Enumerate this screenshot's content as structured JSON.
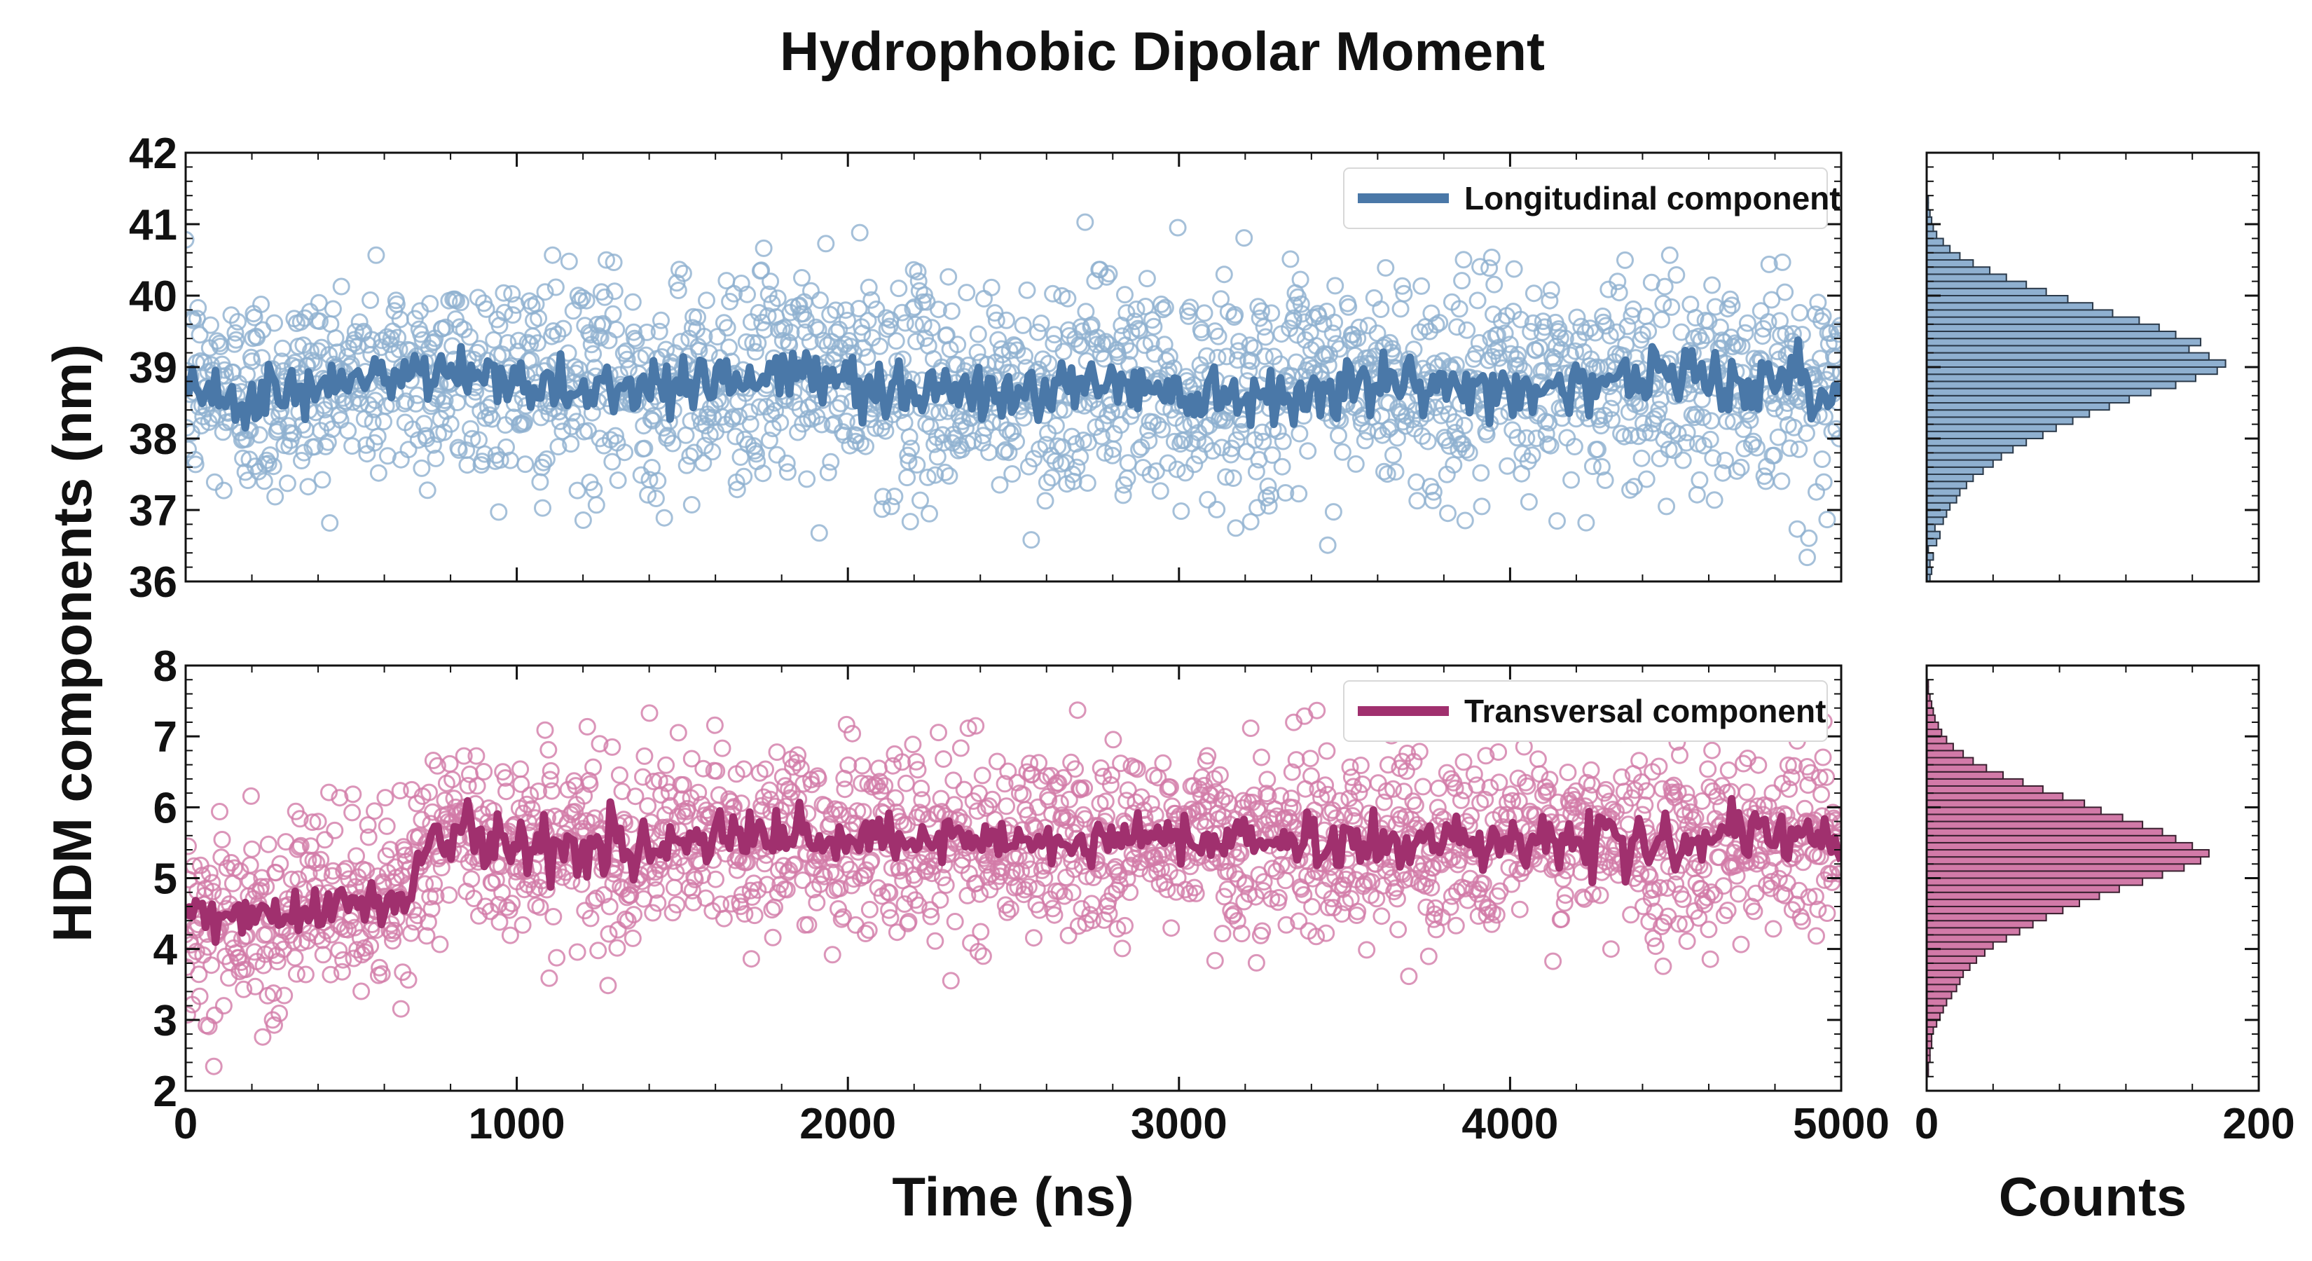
{
  "figure": {
    "title": "Hydrophobic Dipolar Moment",
    "shared_ylabel": "HDM components (nm)",
    "xlabel_time": "Time (ns)",
    "xlabel_counts": "Counts"
  },
  "chart_data": [
    {
      "id": "longitudinal",
      "type": "scatter",
      "title": "",
      "xlabel": "Time (ns)",
      "ylabel": "HDM components (nm)",
      "xlim": [
        0,
        5000
      ],
      "ylim": [
        36,
        42
      ],
      "xticks": [
        0,
        1000,
        2000,
        3000,
        4000,
        5000
      ],
      "yticks": [
        36,
        37,
        38,
        39,
        40,
        41,
        42
      ],
      "legend": "top-right",
      "grid": false,
      "series": [
        {
          "name": "Longitudinal component",
          "color": "#4a78a8",
          "marker_color": "#8fb0d0",
          "style": "line-over-scatter",
          "mean_x": [
            0,
            250,
            500,
            750,
            1000,
            1250,
            1500,
            1750,
            2000,
            2250,
            2500,
            2750,
            3000,
            3250,
            3500,
            3750,
            4000,
            4250,
            4500,
            4750,
            5000
          ],
          "mean_y": [
            38.7,
            38.6,
            38.8,
            38.9,
            38.8,
            38.7,
            38.8,
            38.9,
            38.8,
            38.7,
            38.6,
            38.8,
            38.7,
            38.6,
            38.8,
            38.7,
            38.7,
            38.8,
            38.9,
            38.8,
            38.6
          ],
          "spread_sd": 0.75
        }
      ]
    },
    {
      "id": "transversal",
      "type": "scatter",
      "title": "",
      "xlabel": "Time (ns)",
      "ylabel": "HDM components (nm)",
      "xlim": [
        0,
        5000
      ],
      "ylim": [
        2,
        8
      ],
      "xticks": [
        0,
        1000,
        2000,
        3000,
        4000,
        5000
      ],
      "yticks": [
        2,
        3,
        4,
        5,
        6,
        7,
        8
      ],
      "legend": "top-right",
      "grid": false,
      "series": [
        {
          "name": "Transversal component",
          "color": "#a0306e",
          "marker_color": "#d27aa8",
          "style": "line-over-scatter",
          "mean_x": [
            0,
            250,
            500,
            650,
            700,
            750,
            1000,
            1250,
            1500,
            1750,
            2000,
            2250,
            2500,
            2750,
            3000,
            3250,
            3500,
            3750,
            4000,
            4250,
            4500,
            4750,
            5000
          ],
          "mean_y": [
            4.4,
            4.5,
            4.7,
            4.6,
            5.3,
            5.6,
            5.5,
            5.4,
            5.5,
            5.6,
            5.5,
            5.5,
            5.5,
            5.5,
            5.6,
            5.5,
            5.5,
            5.5,
            5.6,
            5.5,
            5.5,
            5.6,
            5.5
          ],
          "spread_sd": 0.65
        }
      ]
    },
    {
      "id": "longitudinal-hist",
      "type": "bar",
      "orientation": "horizontal",
      "xlabel": "Counts",
      "xlim": [
        0,
        200
      ],
      "ylim": [
        36,
        42
      ],
      "xticks": [
        0,
        200
      ],
      "color": "#8fb0d0",
      "edge_color": "#2b3a4a",
      "bin_width": 0.1,
      "bin_edges_start": 36.0,
      "counts": [
        2,
        3,
        2,
        4,
        1,
        6,
        8,
        5,
        10,
        12,
        14,
        18,
        20,
        24,
        28,
        34,
        40,
        45,
        52,
        60,
        70,
        78,
        88,
        98,
        110,
        122,
        135,
        150,
        162,
        175,
        180,
        170,
        158,
        165,
        150,
        140,
        128,
        112,
        100,
        85,
        72,
        60,
        48,
        38,
        28,
        20,
        14,
        10,
        6,
        4,
        3,
        2,
        1,
        1,
        0,
        0,
        0,
        0,
        0,
        0
      ]
    },
    {
      "id": "transversal-hist",
      "type": "bar",
      "orientation": "horizontal",
      "xlabel": "Counts",
      "xlim": [
        0,
        200
      ],
      "ylim": [
        2,
        8
      ],
      "xticks": [
        0,
        200
      ],
      "color": "#d27aa8",
      "edge_color": "#3a2030",
      "bin_width": 0.1,
      "bin_edges_start": 2.0,
      "counts": [
        0,
        0,
        1,
        1,
        2,
        2,
        3,
        3,
        4,
        6,
        8,
        10,
        12,
        15,
        18,
        20,
        22,
        26,
        30,
        35,
        40,
        48,
        56,
        64,
        72,
        82,
        92,
        104,
        116,
        130,
        142,
        155,
        165,
        170,
        160,
        150,
        142,
        130,
        118,
        105,
        95,
        82,
        70,
        58,
        46,
        36,
        28,
        22,
        16,
        12,
        9,
        7,
        5,
        4,
        3,
        2,
        1,
        1,
        0,
        0
      ]
    }
  ]
}
